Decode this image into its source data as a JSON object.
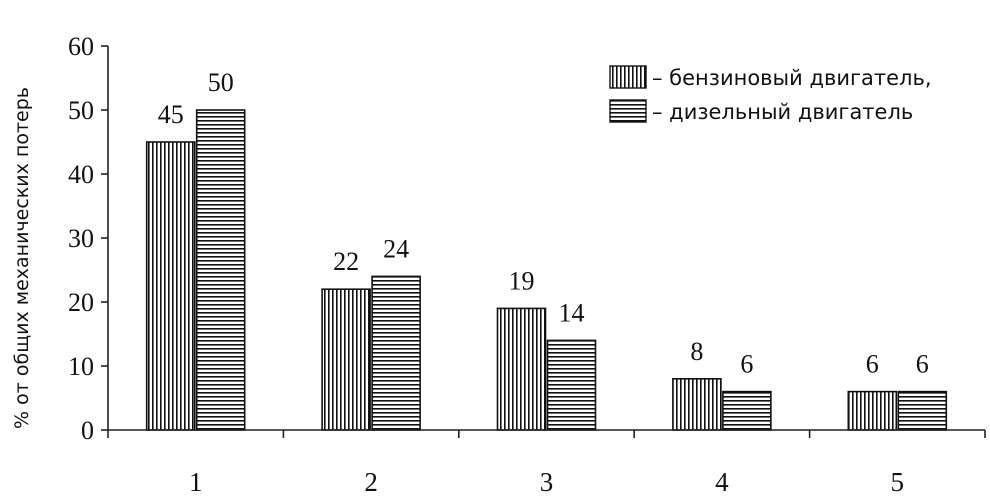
{
  "chart_data": {
    "type": "bar",
    "categories": [
      "1",
      "2",
      "3",
      "4",
      "5"
    ],
    "series": [
      {
        "name": "бензиновый двигатель,",
        "pattern": "vertical-hatch",
        "values": [
          45,
          22,
          19,
          8,
          6
        ]
      },
      {
        "name": "дизельный двигатель",
        "pattern": "horizontal-hatch",
        "values": [
          50,
          24,
          14,
          6,
          6
        ]
      }
    ],
    "legend_prefix": "–",
    "ylabel": "% от общих механических потерь",
    "xlabel": "",
    "ylim": [
      0,
      60
    ],
    "yticks": [
      0,
      10,
      20,
      30,
      40,
      50,
      60
    ],
    "grid": false,
    "legend_position": "top-right",
    "colors": {
      "bar_fill": "#ffffff",
      "hatch": "#111111"
    }
  }
}
